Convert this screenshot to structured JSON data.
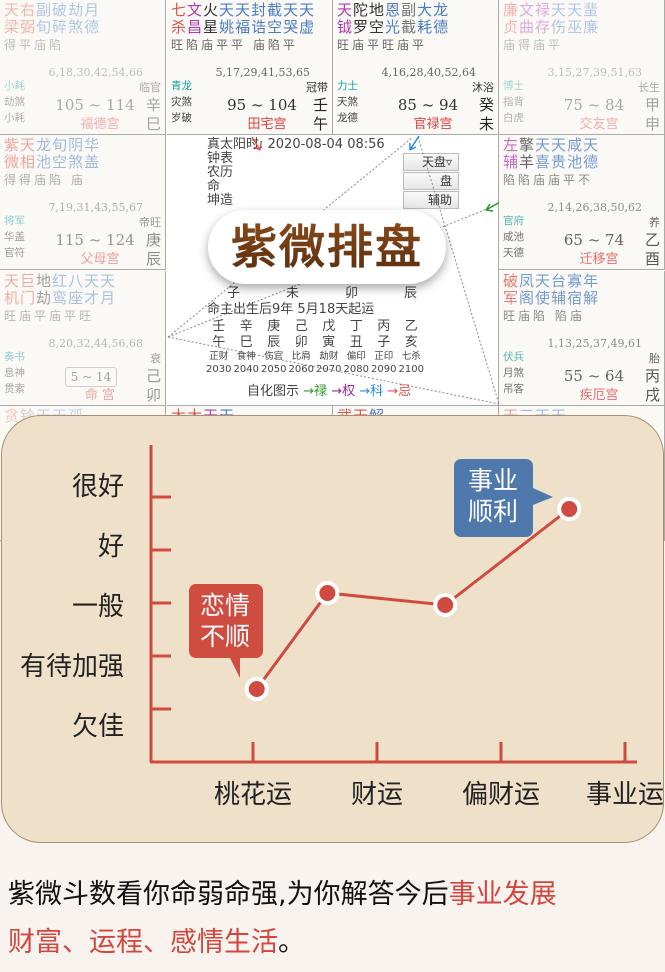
{
  "colors": {
    "red": "#e0504a",
    "purple": "#b03ab0",
    "blue": "#4a7cc2",
    "gray": "#777",
    "black": "#333",
    "accent": "#d04a40",
    "callout_red": "#cf4c40",
    "callout_blue": "#4f78ad"
  },
  "palaces": [
    {
      "pos": [
        0,
        0
      ],
      "fade": 0.4,
      "stars": [
        [
          "天梁",
          "red"
        ],
        [
          "右弼",
          "red"
        ],
        [
          "副旬",
          "blue"
        ],
        [
          "破碎",
          "blue"
        ],
        [
          "劫煞",
          "blue"
        ],
        [
          "月德",
          "blue"
        ]
      ],
      "bright": "得平庙陷",
      "ages": "6,18,30,42,54,66",
      "labels": [
        "小耗",
        "劫煞",
        "小耗"
      ],
      "range": "105 ~ 114",
      "cs": "临官",
      "stem": "辛",
      "branch": "巳",
      "name": "福德宫"
    },
    {
      "pos": [
        0,
        1
      ],
      "fade": 1,
      "stars": [
        [
          "七杀",
          "red"
        ],
        [
          "文昌",
          "purple"
        ],
        [
          "火星",
          "black"
        ],
        [
          "天姚",
          "blue"
        ],
        [
          "天福",
          "blue"
        ],
        [
          "封诰",
          "blue"
        ],
        [
          "截空",
          "blue"
        ],
        [
          "天哭",
          "blue"
        ],
        [
          "天虚",
          "blue"
        ]
      ],
      "bright": "旺陷庙平平 庙陷平",
      "ages": "5,17,29,41,53,65",
      "labels": [
        "青龙",
        "灾煞",
        "岁破"
      ],
      "range": "95 ~ 104",
      "cs": "冠带",
      "stem": "壬",
      "branch": "午",
      "name": "田宅宫"
    },
    {
      "pos": [
        0,
        2
      ],
      "fade": 1,
      "stars": [
        [
          "天钺",
          "purple"
        ],
        [
          "陀罗",
          "black"
        ],
        [
          "地空",
          "black"
        ],
        [
          "恩光",
          "blue"
        ],
        [
          "副截",
          "gray"
        ],
        [
          "大耗",
          "blue"
        ],
        [
          "龙德",
          "blue"
        ]
      ],
      "bright": "旺庙平旺庙平",
      "ages": "4,16,28,40,52,64",
      "labels": [
        "力士",
        "天煞",
        "龙德"
      ],
      "range": "85 ~ 94",
      "cs": "沐浴",
      "stem": "癸",
      "branch": "未",
      "name": "官禄宫"
    },
    {
      "pos": [
        0,
        3
      ],
      "fade": 0.4,
      "stars": [
        [
          "廉贞",
          "red"
        ],
        [
          "文曲",
          "purple"
        ],
        [
          "禄存",
          "purple"
        ],
        [
          "天伤",
          "blue"
        ],
        [
          "天巫",
          "blue"
        ],
        [
          "蜚廉",
          "blue"
        ]
      ],
      "bright": "庙得庙平",
      "ages": "3,15,27,39,51,63",
      "labels": [
        "博士",
        "指背",
        "白虎"
      ],
      "range": "75 ~ 84",
      "cs": "长生",
      "stem": "甲",
      "branch": "申",
      "name": "交友宫"
    },
    {
      "pos": [
        1,
        0
      ],
      "fade": 0.5,
      "stars": [
        [
          "紫微",
          "red"
        ],
        [
          "天相",
          "red"
        ],
        [
          "龙池",
          "blue"
        ],
        [
          "旬空",
          "blue"
        ],
        [
          "阴煞",
          "blue"
        ],
        [
          "华盖",
          "blue"
        ]
      ],
      "bright": "得得庙陷 庙",
      "ages": "7,19,31,43,55,67",
      "labels": [
        "将军",
        "华盖",
        "官符"
      ],
      "range": "115 ~ 124",
      "cs": "帝旺",
      "stem": "庚",
      "branch": "辰",
      "name": "父母宫"
    },
    {
      "pos": [
        1,
        3
      ],
      "fade": 0.75,
      "stars": [
        [
          "左辅",
          "purple"
        ],
        [
          "擎羊",
          "black"
        ],
        [
          "天喜",
          "blue"
        ],
        [
          "天贵",
          "blue"
        ],
        [
          "咸池",
          "blue"
        ],
        [
          "天德",
          "blue"
        ]
      ],
      "bright": "陷陷庙庙平不",
      "ages": "2,14,26,38,50,62",
      "labels": [
        "官府",
        "咸池",
        "天德"
      ],
      "range": "65 ~ 74",
      "cs": "养",
      "stem": "乙",
      "branch": "酉",
      "name": "迁移宫"
    },
    {
      "pos": [
        2,
        0
      ],
      "fade": 0.45,
      "stars": [
        [
          "天机",
          "red"
        ],
        [
          "巨门",
          "red"
        ],
        [
          "地劫",
          "black"
        ],
        [
          "红鸾",
          "blue"
        ],
        [
          "八座",
          "blue"
        ],
        [
          "天才",
          "blue"
        ],
        [
          "天月",
          "blue"
        ]
      ],
      "bright": "旺庙平庙平旺",
      "ages": "8,20,32,44,56,68",
      "labels": [
        "奏书",
        "息神",
        "贯索"
      ],
      "range": "5 ~ 14",
      "boxed": true,
      "cs": "衰",
      "stem": "己",
      "branch": "卯",
      "name": "命 宫"
    },
    {
      "pos": [
        2,
        3
      ],
      "fade": 0.75,
      "stars": [
        [
          "破军",
          "red"
        ],
        [
          "凤阁",
          "blue"
        ],
        [
          "天使",
          "blue"
        ],
        [
          "台辅",
          "blue"
        ],
        [
          "寡宿",
          "blue"
        ],
        [
          "年解",
          "blue"
        ]
      ],
      "bright": "旺庙陷 陷庙",
      "ages": "1,13,25,37,49,61",
      "labels": [
        "伏兵",
        "月煞",
        "吊客"
      ],
      "range": "55 ~ 64",
      "cs": "胎",
      "stem": "丙",
      "branch": "戌",
      "name": "疾厄宫"
    },
    {
      "pos": [
        3,
        0
      ],
      "fade": 0.3,
      "stars": [
        [
          "贪",
          "red"
        ],
        [
          "铃",
          "gray"
        ],
        [
          "天",
          "blue"
        ],
        [
          "天",
          "blue"
        ],
        [
          "孤",
          "blue"
        ]
      ]
    },
    {
      "pos": [
        3,
        1
      ],
      "fade": 1,
      "stars": [
        [
          "太",
          "red"
        ],
        [
          "太",
          "red"
        ],
        [
          "天",
          "purple"
        ],
        [
          "天",
          "blue"
        ]
      ]
    },
    {
      "pos": [
        3,
        2
      ],
      "fade": 1,
      "stars": [
        [
          "武",
          "red"
        ],
        [
          "天",
          "red"
        ],
        [
          "解",
          "blue"
        ]
      ]
    },
    {
      "pos": [
        3,
        3
      ],
      "fade": 0.5,
      "stars": [
        [
          "天",
          "red"
        ],
        [
          "三",
          "blue"
        ],
        [
          "天",
          "blue"
        ],
        [
          "天",
          "blue"
        ]
      ]
    }
  ],
  "center": {
    "info_lines": [
      "真太阳时: 2020-08-04 08:56",
      "钟表",
      "农历",
      "命",
      "坤造"
    ],
    "pillar_branches": [
      "子",
      "未",
      "卯",
      "辰"
    ],
    "qiyun": "命主出生后9年 5月18天起运",
    "stems": [
      "壬",
      "辛",
      "庚",
      "己",
      "戊",
      "丁",
      "丙",
      "乙"
    ],
    "branches": [
      "午",
      "巳",
      "辰",
      "卯",
      "寅",
      "丑",
      "子",
      "亥"
    ],
    "gods": [
      "正财",
      "食神",
      "伤官",
      "比肩",
      "劫财",
      "偏印",
      "正印",
      "七杀"
    ],
    "years": [
      "2030",
      "2040",
      "2050",
      "2060",
      "2070",
      "2080",
      "2090",
      "2100"
    ],
    "legend_label": "自化图示",
    "legend": [
      {
        "t": "→禄",
        "c": "#2a9a2a"
      },
      {
        "t": "→权",
        "c": "#9a2a9a"
      },
      {
        "t": "→科",
        "c": "#2a8ae0"
      },
      {
        "t": "→忌",
        "c": "#e05050"
      }
    ],
    "buttons": [
      "天盘▿",
      "盘",
      "辅助"
    ]
  },
  "overlay_title": "紫微排盘",
  "chart_data": {
    "type": "line",
    "categories": [
      "桃花运",
      "财运",
      "偏财运",
      "事业运"
    ],
    "y_levels": [
      "欠佳",
      "有待加强",
      "一般",
      "好",
      "很好"
    ],
    "points": [
      {
        "x": 0.03,
        "y": 0.6
      },
      {
        "x": 0.6,
        "y": 2.2
      },
      {
        "x": 1.55,
        "y": 2.0
      },
      {
        "x": 2.55,
        "y": 3.6
      }
    ],
    "callouts": [
      {
        "text": [
          "恋情",
          "不顺"
        ],
        "color": "#cf4c40",
        "point": 0
      },
      {
        "text": [
          "事业",
          "顺利"
        ],
        "color": "#4f78ad",
        "point": 3
      }
    ],
    "line_color": "#d04a40"
  },
  "footer": {
    "line1_black": "紫微斗数看你命弱命强,为你解答今后",
    "line1_red": "事业发展",
    "line2_red": "财富、运程、感情生活",
    "line2_black": "。"
  }
}
